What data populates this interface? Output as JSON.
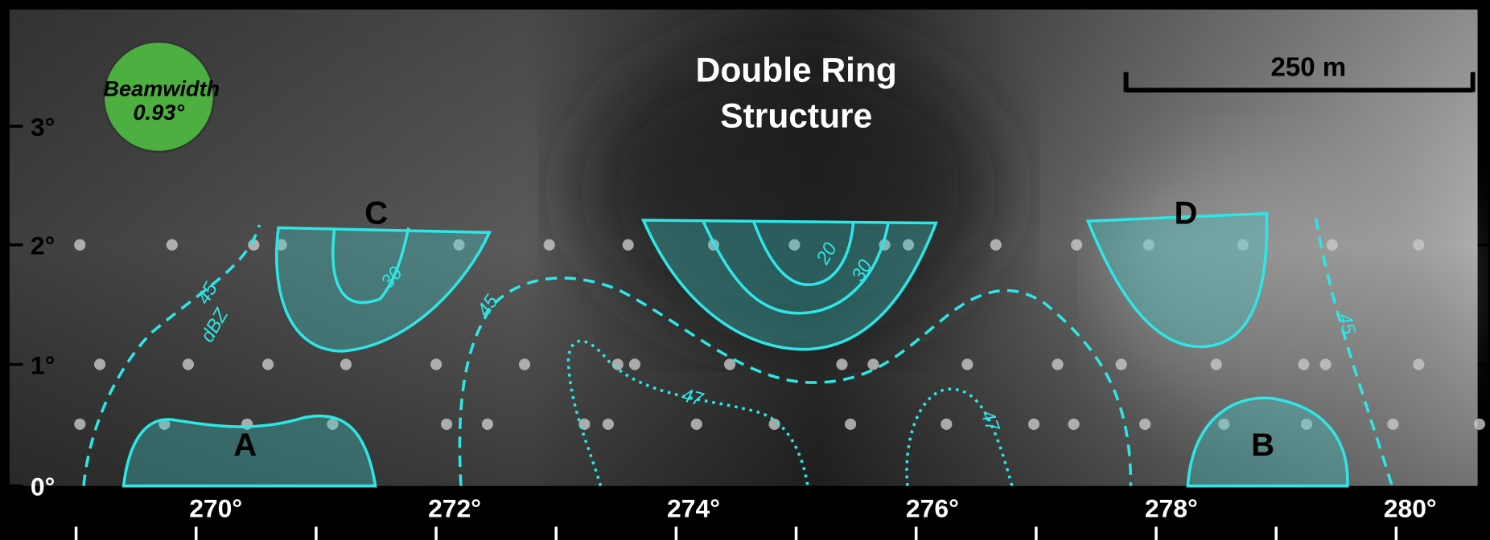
{
  "title": {
    "line1": "Double Ring",
    "line2": "Structure"
  },
  "beamwidth": {
    "label": "Beamwidth",
    "value": "0.93°"
  },
  "scale_bar": {
    "label": "250 m"
  },
  "y_axis": {
    "ticks": [
      "3°",
      "2°",
      "1°",
      "0°"
    ]
  },
  "x_axis": {
    "ticks": [
      "270°",
      "272°",
      "274°",
      "276°",
      "278°",
      "280°"
    ]
  },
  "regions": [
    "A",
    "B",
    "C",
    "D"
  ],
  "contour_labels": {
    "left_45": "45",
    "left_unit": "dBZ",
    "c_30": "30",
    "center_20": "20",
    "center_30": "30",
    "middle_45": "45",
    "middle_47": "47",
    "right_47": "47",
    "right_45": "45"
  }
}
